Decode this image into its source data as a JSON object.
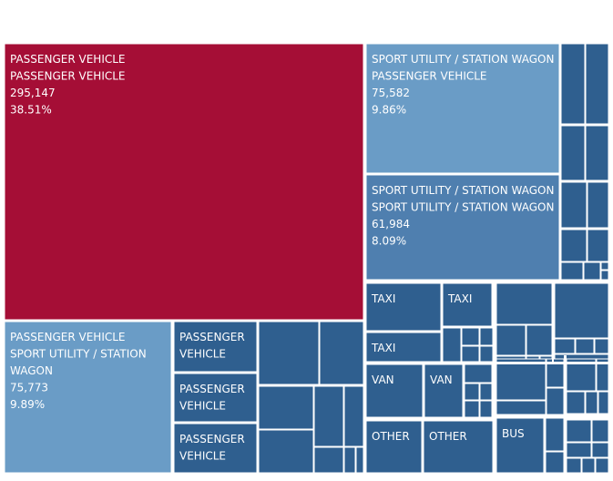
{
  "chart_data": {
    "type": "treemap",
    "title": "",
    "colors": {
      "highlight": "#a50e36",
      "light": "#6a9cc6",
      "mid": "#4f7faf",
      "dark": "#2f5f8f",
      "gap": "#ffffff",
      "text": "#ffffff"
    },
    "nodes": [
      {
        "id": "pv-pv",
        "labels": [
          "PASSENGER VEHICLE",
          "PASSENGER VEHICLE",
          "295,147",
          "38.51%"
        ],
        "value": 295147,
        "percent": 38.51,
        "color": "highlight"
      },
      {
        "id": "suv-pv",
        "labels": [
          "SPORT UTILITY / STATION WAGON",
          "PASSENGER VEHICLE",
          "75,582",
          "9.86%"
        ],
        "value": 75582,
        "percent": 9.86,
        "color": "light"
      },
      {
        "id": "suv-suv",
        "labels": [
          "SPORT UTILITY / STATION WAGON",
          "SPORT UTILITY / STATION WAGON",
          "61,984",
          "8.09%"
        ],
        "value": 61984,
        "percent": 8.09,
        "color": "mid"
      },
      {
        "id": "pv-suv",
        "labels": [
          "PASSENGER VEHICLE",
          "SPORT UTILITY / STATION",
          "WAGON",
          "75,773",
          "9.89%"
        ],
        "value": 75773,
        "percent": 9.89,
        "color": "light"
      },
      {
        "id": "pv-a",
        "labels": [
          "PASSENGER",
          "VEHICLE"
        ],
        "color": "dark"
      },
      {
        "id": "pv-b",
        "labels": [
          "PASSENGER",
          "VEHICLE"
        ],
        "color": "dark"
      },
      {
        "id": "pv-c",
        "labels": [
          "PASSENGER",
          "VEHICLE"
        ],
        "color": "dark"
      },
      {
        "id": "taxi-a",
        "labels": [
          "TAXI"
        ],
        "color": "dark"
      },
      {
        "id": "taxi-b",
        "labels": [
          "TAXI"
        ],
        "color": "dark"
      },
      {
        "id": "taxi-c",
        "labels": [
          "TAXI"
        ],
        "color": "dark"
      },
      {
        "id": "van-a",
        "labels": [
          "VAN"
        ],
        "color": "dark"
      },
      {
        "id": "van-b",
        "labels": [
          "VAN"
        ],
        "color": "dark"
      },
      {
        "id": "other-a",
        "labels": [
          "OTHER"
        ],
        "color": "dark"
      },
      {
        "id": "other-b",
        "labels": [
          "OTHER"
        ],
        "color": "dark"
      },
      {
        "id": "bus-a",
        "labels": [
          "BUS"
        ],
        "color": "dark"
      }
    ]
  }
}
